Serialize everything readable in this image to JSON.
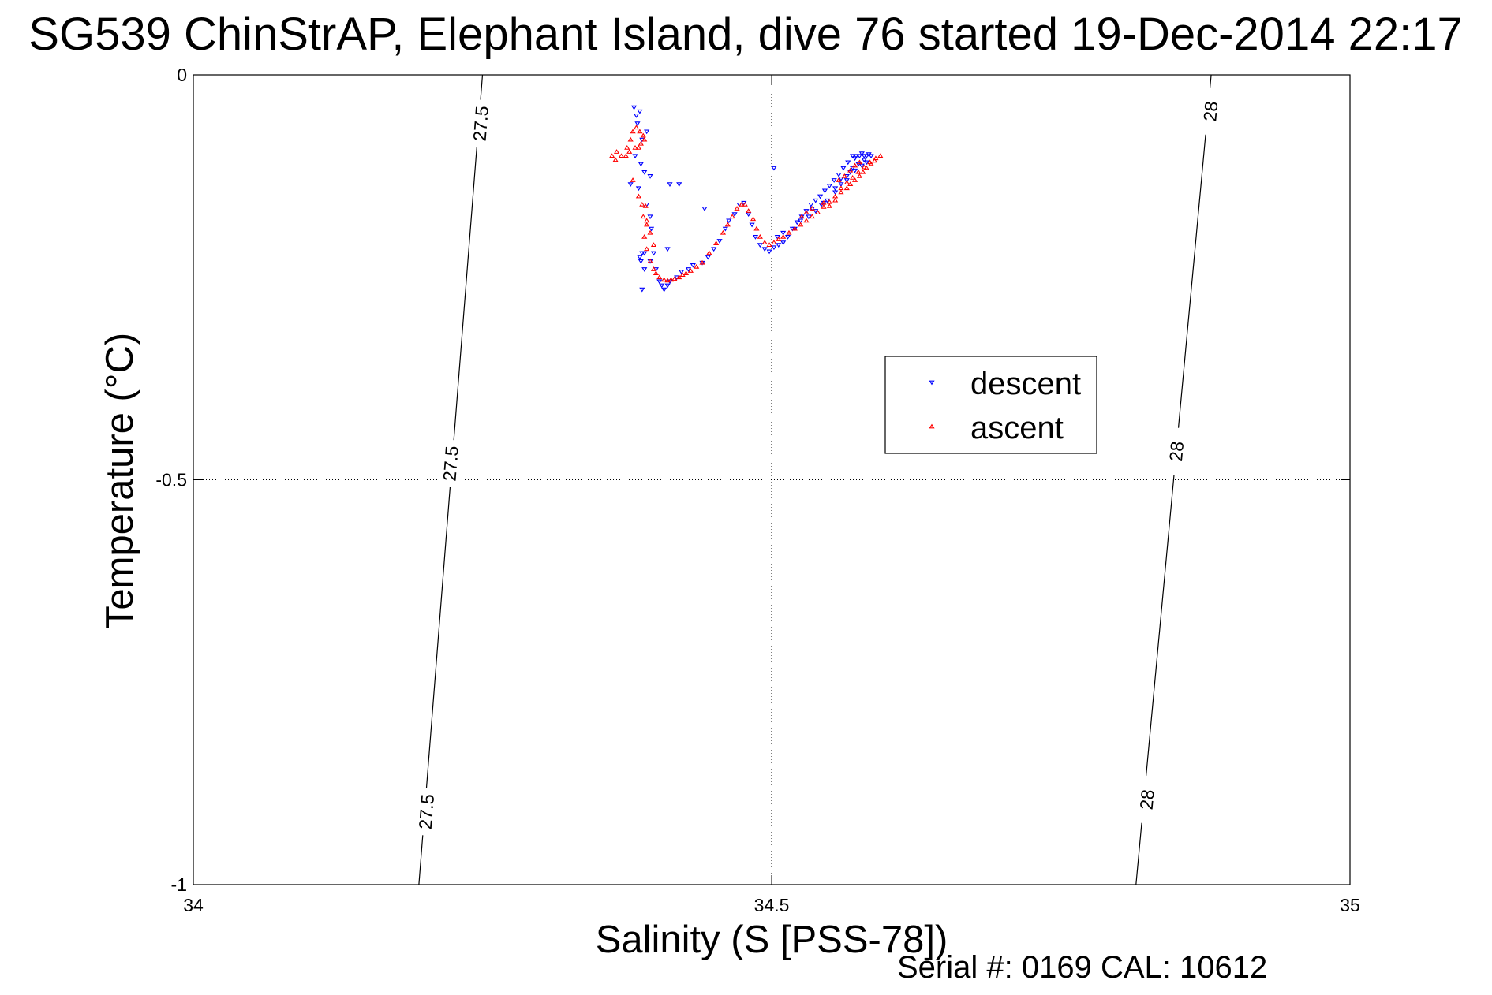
{
  "chart_data": {
    "type": "scatter",
    "title": "SG539 ChinStrAP, Elephant Island, dive 76 started 19-Dec-2014 22:17",
    "xlabel": "Salinity (S [PSS-78])",
    "ylabel": "Temperature (°C)",
    "xlim": [
      34,
      35
    ],
    "ylim": [
      -1,
      0
    ],
    "x_ticks": [
      34,
      34.5,
      35
    ],
    "x_tick_labels": [
      "34",
      "34.5",
      "35"
    ],
    "y_ticks": [
      0,
      -0.5,
      -1
    ],
    "y_tick_labels": [
      "0",
      "-0.5",
      "-1"
    ],
    "grid": true,
    "legend_position": "center-right",
    "series": [
      {
        "name": "descent",
        "marker": "triangle-down",
        "color": "#0000ff",
        "points": [
          [
            34.381,
            -0.04
          ],
          [
            34.383,
            -0.05
          ],
          [
            34.386,
            -0.045
          ],
          [
            34.384,
            -0.06
          ],
          [
            34.388,
            -0.08
          ],
          [
            34.392,
            -0.07
          ],
          [
            34.382,
            -0.1
          ],
          [
            34.387,
            -0.11
          ],
          [
            34.39,
            -0.12
          ],
          [
            34.395,
            -0.125
          ],
          [
            34.385,
            -0.14
          ],
          [
            34.378,
            -0.135
          ],
          [
            34.392,
            -0.16
          ],
          [
            34.395,
            -0.175
          ],
          [
            34.396,
            -0.19
          ],
          [
            34.412,
            -0.135
          ],
          [
            34.42,
            -0.135
          ],
          [
            34.442,
            -0.165
          ],
          [
            34.41,
            -0.215
          ],
          [
            34.395,
            -0.23
          ],
          [
            34.398,
            -0.22
          ],
          [
            34.39,
            -0.24
          ],
          [
            34.388,
            -0.265
          ],
          [
            34.387,
            -0.23
          ],
          [
            34.388,
            -0.22
          ],
          [
            34.386,
            -0.225
          ],
          [
            34.39,
            -0.22
          ],
          [
            34.4,
            -0.24
          ],
          [
            34.403,
            -0.255
          ],
          [
            34.405,
            -0.26
          ],
          [
            34.407,
            -0.265
          ],
          [
            34.41,
            -0.26
          ],
          [
            34.412,
            -0.255
          ],
          [
            34.418,
            -0.25
          ],
          [
            34.422,
            -0.243
          ],
          [
            34.428,
            -0.24
          ],
          [
            34.432,
            -0.235
          ],
          [
            34.44,
            -0.232
          ],
          [
            34.445,
            -0.225
          ],
          [
            34.45,
            -0.215
          ],
          [
            34.455,
            -0.205
          ],
          [
            34.46,
            -0.19
          ],
          [
            34.463,
            -0.18
          ],
          [
            34.468,
            -0.172
          ],
          [
            34.472,
            -0.16
          ],
          [
            34.476,
            -0.158
          ],
          [
            34.48,
            -0.172
          ],
          [
            34.483,
            -0.185
          ],
          [
            34.486,
            -0.2
          ],
          [
            34.49,
            -0.21
          ],
          [
            34.494,
            -0.215
          ],
          [
            34.498,
            -0.218
          ],
          [
            34.502,
            -0.213
          ],
          [
            34.506,
            -0.21
          ],
          [
            34.51,
            -0.207
          ],
          [
            34.514,
            -0.2
          ],
          [
            34.518,
            -0.19
          ],
          [
            34.522,
            -0.182
          ],
          [
            34.526,
            -0.175
          ],
          [
            34.53,
            -0.168
          ],
          [
            34.534,
            -0.16
          ],
          [
            34.538,
            -0.155
          ],
          [
            34.542,
            -0.15
          ],
          [
            34.546,
            -0.143
          ],
          [
            34.55,
            -0.137
          ],
          [
            34.554,
            -0.13
          ],
          [
            34.558,
            -0.123
          ],
          [
            34.562,
            -0.115
          ],
          [
            34.566,
            -0.108
          ],
          [
            34.57,
            -0.1
          ],
          [
            34.573,
            -0.1
          ],
          [
            34.576,
            -0.1
          ],
          [
            34.578,
            -0.097
          ],
          [
            34.58,
            -0.1
          ],
          [
            34.582,
            -0.1
          ],
          [
            34.584,
            -0.098
          ],
          [
            34.586,
            -0.1
          ],
          [
            34.575,
            -0.11
          ],
          [
            34.57,
            -0.115
          ],
          [
            34.565,
            -0.125
          ],
          [
            34.56,
            -0.135
          ],
          [
            34.555,
            -0.14
          ],
          [
            34.548,
            -0.155
          ],
          [
            34.543,
            -0.16
          ],
          [
            34.538,
            -0.168
          ],
          [
            34.532,
            -0.175
          ],
          [
            34.525,
            -0.18
          ],
          [
            34.52,
            -0.19
          ],
          [
            34.51,
            -0.195
          ],
          [
            34.505,
            -0.2
          ],
          [
            34.535,
            -0.165
          ],
          [
            34.545,
            -0.158
          ],
          [
            34.555,
            -0.145
          ],
          [
            34.565,
            -0.13
          ],
          [
            34.572,
            -0.118
          ],
          [
            34.578,
            -0.112
          ],
          [
            34.582,
            -0.108
          ],
          [
            34.502,
            -0.115
          ],
          [
            34.58,
            -0.105
          ],
          [
            34.572,
            -0.103
          ],
          [
            34.568,
            -0.12
          ],
          [
            34.56,
            -0.128
          ]
        ]
      },
      {
        "name": "ascent",
        "marker": "triangle-up",
        "color": "#ff0000",
        "points": [
          [
            34.37,
            -0.1
          ],
          [
            34.375,
            -0.09
          ],
          [
            34.378,
            -0.08
          ],
          [
            34.38,
            -0.07
          ],
          [
            34.383,
            -0.065
          ],
          [
            34.386,
            -0.07
          ],
          [
            34.389,
            -0.075
          ],
          [
            34.39,
            -0.08
          ],
          [
            34.387,
            -0.085
          ],
          [
            34.385,
            -0.09
          ],
          [
            34.382,
            -0.09
          ],
          [
            34.377,
            -0.095
          ],
          [
            34.374,
            -0.1
          ],
          [
            34.365,
            -0.105
          ],
          [
            34.362,
            -0.1
          ],
          [
            34.366,
            -0.095
          ],
          [
            34.38,
            -0.13
          ],
          [
            34.385,
            -0.15
          ],
          [
            34.388,
            -0.16
          ],
          [
            34.392,
            -0.18
          ],
          [
            34.39,
            -0.2
          ],
          [
            34.392,
            -0.215
          ],
          [
            34.395,
            -0.23
          ],
          [
            34.398,
            -0.24
          ],
          [
            34.4,
            -0.245
          ],
          [
            34.403,
            -0.25
          ],
          [
            34.407,
            -0.253
          ],
          [
            34.41,
            -0.254
          ],
          [
            34.413,
            -0.253
          ],
          [
            34.416,
            -0.252
          ],
          [
            34.42,
            -0.25
          ],
          [
            34.423,
            -0.247
          ],
          [
            34.426,
            -0.245
          ],
          [
            34.43,
            -0.242
          ],
          [
            34.435,
            -0.237
          ],
          [
            34.44,
            -0.232
          ],
          [
            34.446,
            -0.22
          ],
          [
            34.452,
            -0.208
          ],
          [
            34.458,
            -0.195
          ],
          [
            34.462,
            -0.185
          ],
          [
            34.466,
            -0.175
          ],
          [
            34.47,
            -0.165
          ],
          [
            34.474,
            -0.16
          ],
          [
            34.477,
            -0.16
          ],
          [
            34.48,
            -0.168
          ],
          [
            34.484,
            -0.178
          ],
          [
            34.487,
            -0.19
          ],
          [
            34.49,
            -0.2
          ],
          [
            34.494,
            -0.207
          ],
          [
            34.498,
            -0.21
          ],
          [
            34.502,
            -0.207
          ],
          [
            34.506,
            -0.203
          ],
          [
            34.51,
            -0.2
          ],
          [
            34.515,
            -0.195
          ],
          [
            34.52,
            -0.19
          ],
          [
            34.525,
            -0.185
          ],
          [
            34.53,
            -0.18
          ],
          [
            34.535,
            -0.175
          ],
          [
            34.54,
            -0.17
          ],
          [
            34.545,
            -0.163
          ],
          [
            34.55,
            -0.157
          ],
          [
            34.555,
            -0.15
          ],
          [
            34.56,
            -0.14
          ],
          [
            34.565,
            -0.133
          ],
          [
            34.57,
            -0.127
          ],
          [
            34.575,
            -0.12
          ],
          [
            34.58,
            -0.114
          ],
          [
            34.585,
            -0.108
          ],
          [
            34.59,
            -0.103
          ],
          [
            34.594,
            -0.1
          ],
          [
            34.545,
            -0.158
          ],
          [
            34.55,
            -0.162
          ],
          [
            34.555,
            -0.155
          ],
          [
            34.56,
            -0.145
          ],
          [
            34.565,
            -0.14
          ],
          [
            34.568,
            -0.135
          ],
          [
            34.572,
            -0.13
          ],
          [
            34.576,
            -0.125
          ],
          [
            34.579,
            -0.12
          ],
          [
            34.582,
            -0.115
          ],
          [
            34.586,
            -0.11
          ],
          [
            34.589,
            -0.106
          ],
          [
            34.568,
            -0.118
          ],
          [
            34.572,
            -0.112
          ],
          [
            34.576,
            -0.108
          ],
          [
            34.563,
            -0.125
          ],
          [
            34.558,
            -0.13
          ],
          [
            34.535,
            -0.165
          ],
          [
            34.53,
            -0.17
          ],
          [
            34.526,
            -0.175
          ],
          [
            34.391,
            -0.162
          ],
          [
            34.389,
            -0.175
          ],
          [
            34.392,
            -0.185
          ],
          [
            34.395,
            -0.195
          ],
          [
            34.398,
            -0.21
          ]
        ]
      }
    ],
    "contours": [
      {
        "label": "27.5",
        "line": [
          [
            34.195,
            -1
          ],
          [
            34.25,
            0
          ]
        ],
        "label_positions": [
          [
            34.2485,
            -0.06
          ],
          [
            34.2225,
            -0.48
          ],
          [
            34.2015,
            -0.91
          ]
        ]
      },
      {
        "label": "28",
        "line": [
          [
            34.815,
            -1
          ],
          [
            34.88,
            0
          ]
        ],
        "label_positions": [
          [
            34.8795,
            -0.045
          ],
          [
            34.85,
            -0.465
          ],
          [
            34.8245,
            -0.895
          ]
        ]
      }
    ]
  },
  "footer_text": "Serial #: 0169 CAL: 10612"
}
